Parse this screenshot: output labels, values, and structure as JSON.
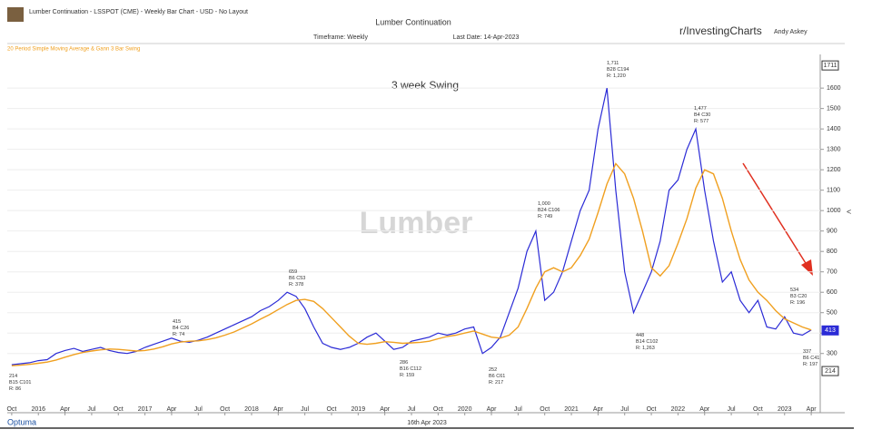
{
  "header": {
    "caption": "Lumber Continuation - LSSPOT (CME) - Weekly Bar Chart - USD - No Layout",
    "chart_title": "Lumber Continuation",
    "timeframe": "Timeframe: Weekly",
    "last_date": "Last Date: 14-Apr-2023",
    "source": "r/InvestingCharts",
    "author": "Andy Askey",
    "indicator": "20 Period Simple Moving Average & Gann 3 Bar Swing"
  },
  "chart_data": {
    "type": "line",
    "title": "3 week Swing",
    "watermark": "Lumber",
    "categories": [
      "Oct",
      null,
      null,
      "2016",
      null,
      null,
      "Apr",
      null,
      null,
      "Jul",
      null,
      null,
      "Oct",
      null,
      null,
      "2017",
      null,
      null,
      "Apr",
      null,
      null,
      "Jul",
      null,
      null,
      "Oct",
      null,
      null,
      "2018",
      null,
      null,
      "Apr",
      null,
      null,
      "Jul",
      null,
      null,
      "Oct",
      null,
      null,
      "2019",
      null,
      null,
      "Apr",
      null,
      null,
      "Jul",
      null,
      null,
      "Oct",
      null,
      null,
      "2020",
      null,
      null,
      "Apr",
      null,
      null,
      "Jul",
      null,
      null,
      "Oct",
      null,
      null,
      "2021",
      null,
      null,
      "Apr",
      null,
      null,
      "Jul",
      null,
      null,
      "Oct",
      null,
      null,
      "2022",
      null,
      null,
      "Apr",
      null,
      null,
      "Jul",
      null,
      null,
      "Oct",
      null,
      null,
      "2023",
      null,
      null,
      "Apr"
    ],
    "series": [
      {
        "color": "#2b2bd6",
        "values": [
          245,
          250,
          255,
          265,
          270,
          300,
          315,
          325,
          310,
          320,
          330,
          315,
          305,
          300,
          310,
          330,
          345,
          360,
          375,
          360,
          355,
          365,
          380,
          400,
          420,
          440,
          460,
          480,
          510,
          530,
          560,
          600,
          580,
          520,
          430,
          350,
          330,
          320,
          330,
          350,
          380,
          400,
          360,
          320,
          330,
          360,
          370,
          380,
          400,
          390,
          400,
          420,
          430,
          300,
          330,
          380,
          500,
          620,
          800,
          900,
          560,
          600,
          700,
          850,
          1000,
          1100,
          1400,
          1600,
          1100,
          700,
          500,
          600,
          700,
          850,
          1100,
          1150,
          1300,
          1400,
          1100,
          850,
          650,
          700,
          560,
          500,
          560,
          430,
          420,
          480,
          400,
          390,
          415
        ]
      },
      {
        "color": "#f0a020",
        "values": [
          240,
          243,
          247,
          252,
          258,
          268,
          282,
          295,
          305,
          312,
          318,
          322,
          320,
          316,
          312,
          315,
          322,
          333,
          347,
          356,
          360,
          362,
          368,
          377,
          390,
          405,
          425,
          445,
          468,
          490,
          515,
          540,
          560,
          565,
          555,
          520,
          475,
          430,
          385,
          350,
          345,
          350,
          358,
          355,
          350,
          352,
          355,
          360,
          372,
          383,
          390,
          400,
          410,
          395,
          380,
          375,
          390,
          430,
          520,
          620,
          700,
          720,
          700,
          720,
          780,
          860,
          990,
          1130,
          1230,
          1180,
          1060,
          900,
          720,
          680,
          730,
          840,
          960,
          1110,
          1200,
          1180,
          1060,
          900,
          760,
          660,
          600,
          560,
          510,
          470,
          450,
          430,
          415
        ]
      }
    ],
    "ylim": [
      10,
      1765
    ],
    "yticks": [
      300,
      400,
      500,
      600,
      700,
      800,
      900,
      1000,
      1100,
      1200,
      1300,
      1400,
      1500,
      1600
    ],
    "price_markers": [
      1711,
      214,
      413
    ],
    "annotations": [
      "214\nB15 C101\nR: 86",
      "415\nB4 C26\nR: 74",
      "659\nB6 C53\nR: 378",
      "286\nB16 C112\nR: 159",
      "252\nB6 C61\nR: 217",
      "1,000\nB24 C106\nR: 749",
      "1,711\nB28 C194\nR: 1,220",
      "448\nB14 C102\nR: 1,263",
      "1,477\nB4 C30\nR: 577",
      "534\nB3 C20\nR: 196",
      "337\nB6 C41\nR: 197"
    ],
    "footer_date": "16th Apr 2023",
    "brand": "Optuma"
  }
}
